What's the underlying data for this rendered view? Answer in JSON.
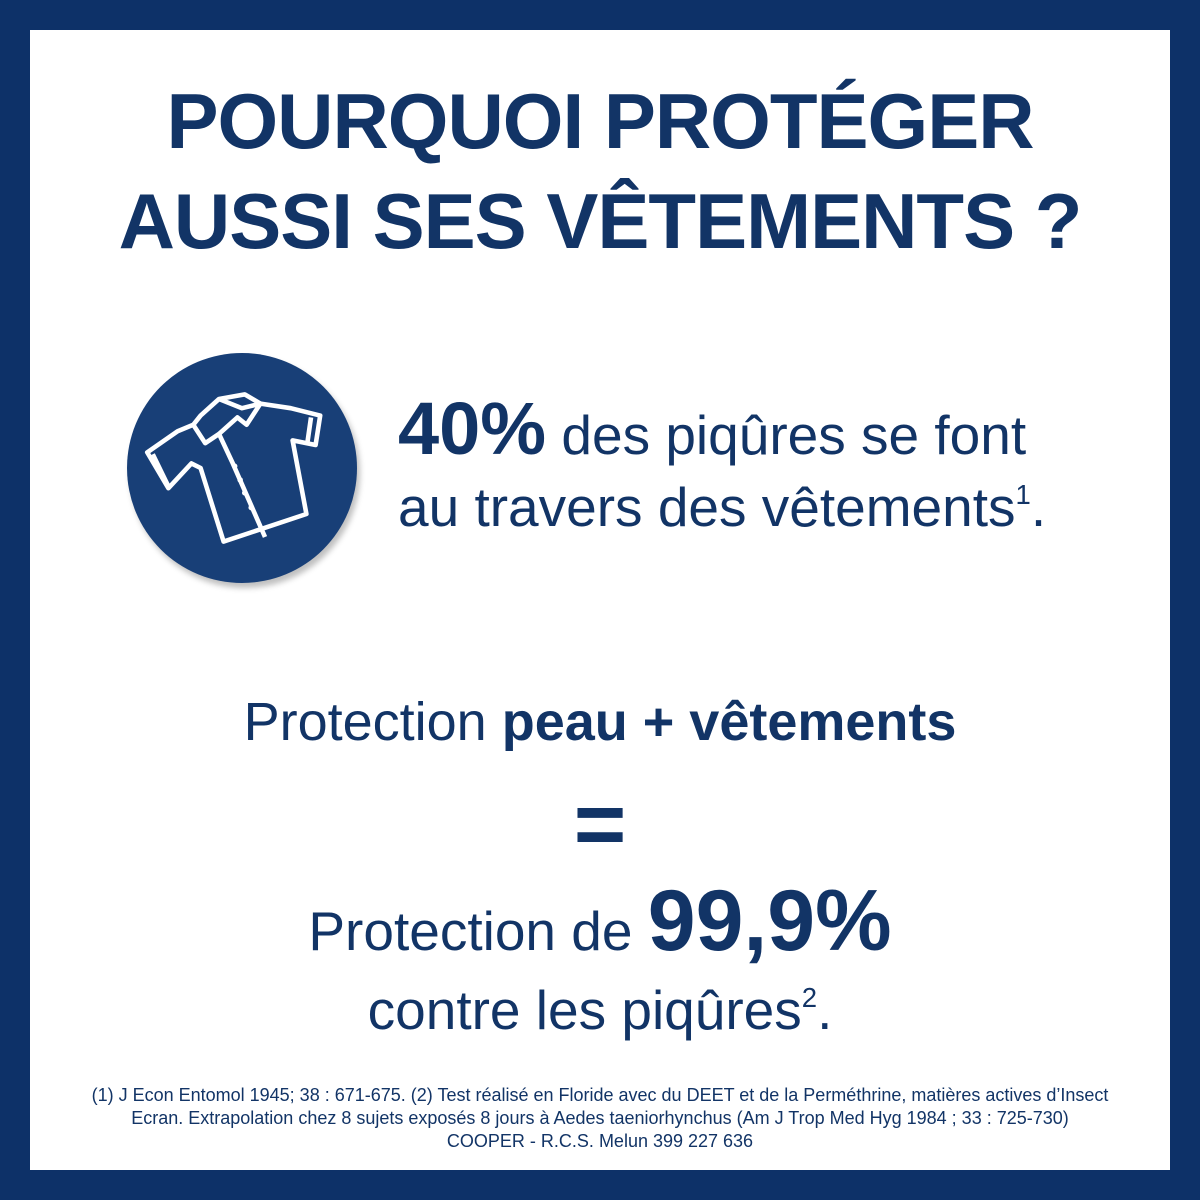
{
  "colors": {
    "frame": "#0d3168",
    "text": "#123466",
    "icon_bg": "#183f77"
  },
  "title": {
    "line1": "POURQUOI PROTÉGER",
    "line2": "AUSSI SES VÊTEMENTS ?"
  },
  "icon": "shirt-icon",
  "stat": {
    "value": "40%",
    "text1": " des piqûres se font",
    "text2": "au travers des vêtements",
    "sup": "1",
    "end": "."
  },
  "equation": {
    "line1_normal": "Protection ",
    "line1_bold": "peau + vêtements",
    "equals": "=",
    "line2_normal": "Protection de ",
    "line2_bold": "99,9%",
    "line3": "contre les piqûres",
    "line3_sup": "2",
    "line3_end": "."
  },
  "footnotes": [
    "(1) J Econ Entomol 1945; 38 : 671-675. (2) Test réalisé en Floride avec du DEET et de la Perméthrine, matières actives d’Insect",
    "Ecran. Extrapolation chez 8 sujets exposés 8 jours à Aedes taeniorhynchus (Am J Trop Med Hyg 1984 ; 33 : 725-730)",
    "COOPER - R.C.S. Melun 399 227 636"
  ]
}
